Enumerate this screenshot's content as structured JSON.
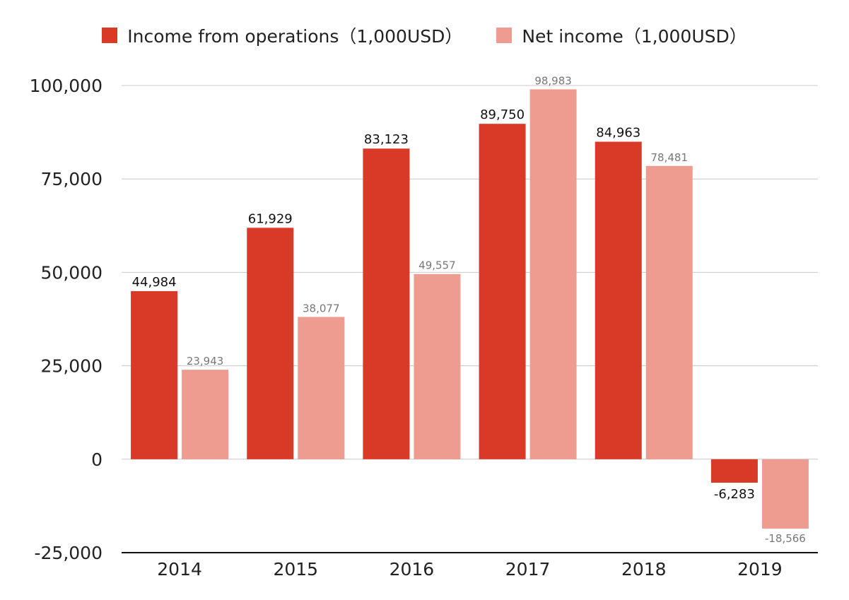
{
  "chart_data": {
    "type": "bar",
    "categories": [
      "2014",
      "2015",
      "2016",
      "2017",
      "2018",
      "2019"
    ],
    "series": [
      {
        "name": "Income from operations（1,000USD）",
        "color": "#d93a27",
        "values": [
          44984,
          61929,
          83123,
          89750,
          84963,
          -6283
        ],
        "labels": [
          "44,984",
          "61,929",
          "83,123",
          "89,750",
          "84,963",
          "-6,283"
        ]
      },
      {
        "name": "Net income（1,000USD）",
        "color": "#ee9c90",
        "values": [
          23943,
          38077,
          49557,
          98983,
          78481,
          -18566
        ],
        "labels": [
          "23,943",
          "38,077",
          "49,557",
          "98,983",
          "78,481",
          "-18,566"
        ]
      }
    ],
    "yticks": [
      100000,
      75000,
      50000,
      25000,
      0,
      -25000
    ],
    "ytick_labels": [
      "100,000",
      "75,000",
      "50,000",
      "25,000",
      "0",
      "-25,000"
    ],
    "ylim": [
      -25000,
      100000
    ],
    "grid": true,
    "legend_position": "top"
  }
}
